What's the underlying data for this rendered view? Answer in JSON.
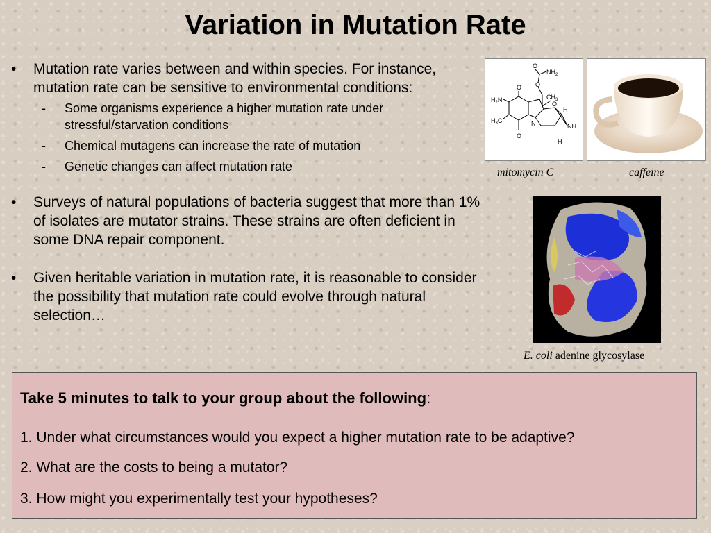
{
  "slide": {
    "title": "Variation in Mutation Rate",
    "bullets": [
      {
        "text": "Mutation rate varies between and within species.  For instance, mutation rate can be sensitive to environmental conditions:",
        "sub": [
          "Some organisms experience a higher mutation rate under stressful/starvation conditions",
          "Chemical mutagens can increase the rate of mutation",
          "Genetic changes can affect mutation rate"
        ]
      },
      {
        "text": "Surveys of natural populations of bacteria suggest that more than 1% of isolates are mutator strains.  These strains are often deficient in some DNA repair component."
      },
      {
        "text": "Given heritable variation in mutation rate, it is reasonable to consider the possibility that mutation rate could evolve through natural selection…"
      }
    ]
  },
  "figures": {
    "mitomycin_caption": "mitomycin C",
    "caffeine_caption": "caffeine",
    "enzyme_caption_italic": "E. coli",
    "enzyme_caption_rest": " adenine glycosylase",
    "structure_labels": {
      "o_top": "O",
      "nh2": "NH",
      "nh2_sub": "2",
      "ch3": "CH",
      "ch3_sub": "3",
      "o_ring": "O",
      "h2n": "H",
      "h2n_sub": "2",
      "h2n_n": "N",
      "h3c": "H",
      "h3c_sub": "3",
      "h3c_c": "C",
      "o_bottom": "O",
      "o_quinone": "O",
      "n_ring": "N",
      "h1": "H",
      "nh": "NH",
      "h2": "H"
    }
  },
  "discussion": {
    "heading_bold": "Take 5 minutes to talk to your group about the following",
    "heading_colon": ":",
    "questions": [
      "1. Under what circumstances would you expect a higher mutation rate to be adaptive?",
      "2. What are the costs to being a mutator?",
      "3. How might you experimentally test your hypotheses?"
    ]
  }
}
